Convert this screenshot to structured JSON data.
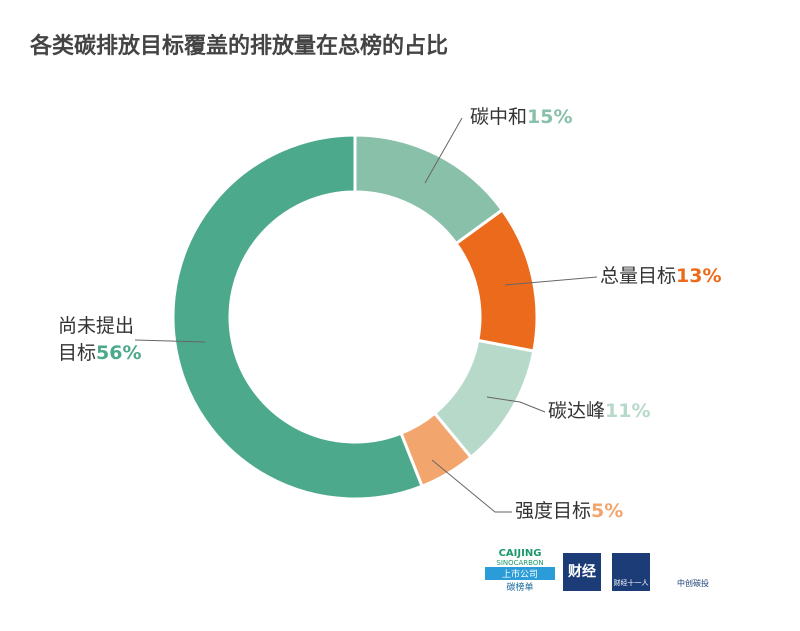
{
  "chart_data": {
    "type": "donut",
    "title": "各类碳排放目标覆盖的排放量在总榜的占比",
    "categories": [
      "碳中和",
      "总量目标",
      "碳达峰",
      "强度目标",
      "尚未提出目标"
    ],
    "values": [
      15,
      13,
      11,
      5,
      56
    ],
    "value_labels": [
      "15%",
      "13%",
      "11%",
      "5%",
      "56%"
    ],
    "colors": [
      "#88c0aa",
      "#ec6a1c",
      "#b6d9ca",
      "#f3a56e",
      "#4ca98c"
    ]
  },
  "footer_logos": [
    "CAIJING",
    "SINOCARBON",
    "上市公司",
    "碳榜单",
    "财经",
    "财经十一人",
    "中创碳投"
  ]
}
